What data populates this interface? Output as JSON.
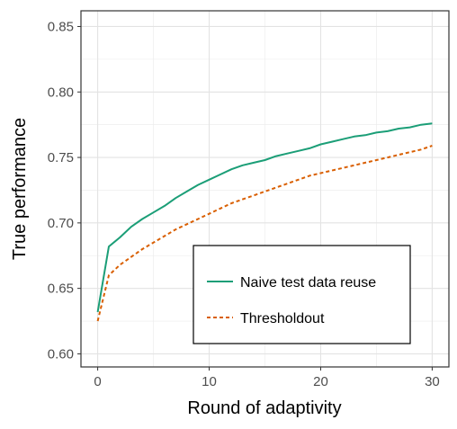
{
  "chart_data": {
    "type": "line",
    "title": "",
    "xlabel": "Round of adaptivity",
    "ylabel": "True performance",
    "xlim": [
      -1.5,
      31.5
    ],
    "ylim": [
      0.59,
      0.862
    ],
    "xticks": [
      0,
      10,
      20,
      30
    ],
    "yticks": [
      0.6,
      0.65,
      0.7,
      0.75,
      0.8,
      0.85
    ],
    "xtick_labels": [
      "0",
      "10",
      "20",
      "30"
    ],
    "ytick_labels": [
      "0.60",
      "0.65",
      "0.70",
      "0.75",
      "0.80",
      "0.85"
    ],
    "grid": true,
    "legend_position": "bottom-right",
    "x": [
      0,
      1,
      2,
      3,
      4,
      5,
      6,
      7,
      8,
      9,
      10,
      11,
      12,
      13,
      14,
      15,
      16,
      17,
      18,
      19,
      20,
      21,
      22,
      23,
      24,
      25,
      26,
      27,
      28,
      29,
      30
    ],
    "series": [
      {
        "name": "Naive test data reuse",
        "color": "#1b9e77",
        "dash": "solid",
        "values": [
          0.632,
          0.682,
          0.689,
          0.697,
          0.703,
          0.708,
          0.713,
          0.719,
          0.724,
          0.729,
          0.733,
          0.737,
          0.741,
          0.744,
          0.746,
          0.748,
          0.751,
          0.753,
          0.755,
          0.757,
          0.76,
          0.762,
          0.764,
          0.766,
          0.767,
          0.769,
          0.77,
          0.772,
          0.773,
          0.775,
          0.776
        ]
      },
      {
        "name": "Thresholdout",
        "color": "#d95f02",
        "dash": "dotted",
        "values": [
          0.625,
          0.66,
          0.668,
          0.674,
          0.68,
          0.685,
          0.69,
          0.695,
          0.699,
          0.703,
          0.707,
          0.711,
          0.715,
          0.718,
          0.721,
          0.724,
          0.727,
          0.73,
          0.733,
          0.736,
          0.738,
          0.74,
          0.742,
          0.744,
          0.746,
          0.748,
          0.75,
          0.752,
          0.754,
          0.756,
          0.759
        ]
      }
    ]
  }
}
